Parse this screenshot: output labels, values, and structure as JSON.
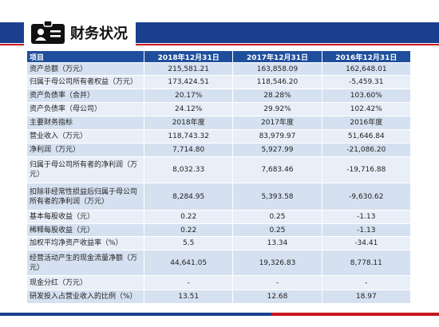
{
  "header": {
    "title": "财务状况"
  },
  "table": {
    "columns": [
      "项目",
      "2018年12月31日",
      "2017年12月31日",
      "2016年12月31日"
    ],
    "rows": [
      [
        "资产总额（万元）",
        "215,581.21",
        "163,858.09",
        "162,648.01"
      ],
      [
        "归属于母公司所有者权益（万元）",
        "173,424.51",
        "118,546.20",
        "-5,459.31"
      ],
      [
        "资产负债率（合并）",
        "20.17%",
        "28.28%",
        "103.60%"
      ],
      [
        "资产负债率（母公司）",
        "24.12%",
        "29.92%",
        "102.42%"
      ],
      [
        "主要财务指标",
        "2018年度",
        "2017年度",
        "2016年度"
      ],
      [
        "营业收入（万元）",
        "118,743.32",
        "83,979.97",
        "51,646.84"
      ],
      [
        "净利润（万元）",
        "7,714.80",
        "5,927.99",
        "-21,086.20"
      ],
      [
        "归属于母公司所有者的净利润（万元）",
        "8,032.33",
        "7,683.46",
        "-19,716.88"
      ],
      [
        "扣除非经常性损益后归属于母公司所有者的净利润（万元）",
        "8,284.95",
        "5,393.58",
        "-9,630.62"
      ],
      [
        "基本每股收益（元）",
        "0.22",
        "0.25",
        "-1.13"
      ],
      [
        "稀释每股收益（元）",
        "0.22",
        "0.25",
        "-1.13"
      ],
      [
        "加权平均净资产收益率（%）",
        "5.5",
        "13.34",
        "-34.41"
      ],
      [
        "经营活动产生的现金流量净额（万元）",
        "44,641.05",
        "19,326.83",
        "8,778.11"
      ],
      [
        "现金分红（万元）",
        "-",
        "-",
        "-"
      ],
      [
        "研发投入占营业收入的比例（%）",
        "13.51",
        "12.68",
        "18.97"
      ]
    ]
  }
}
